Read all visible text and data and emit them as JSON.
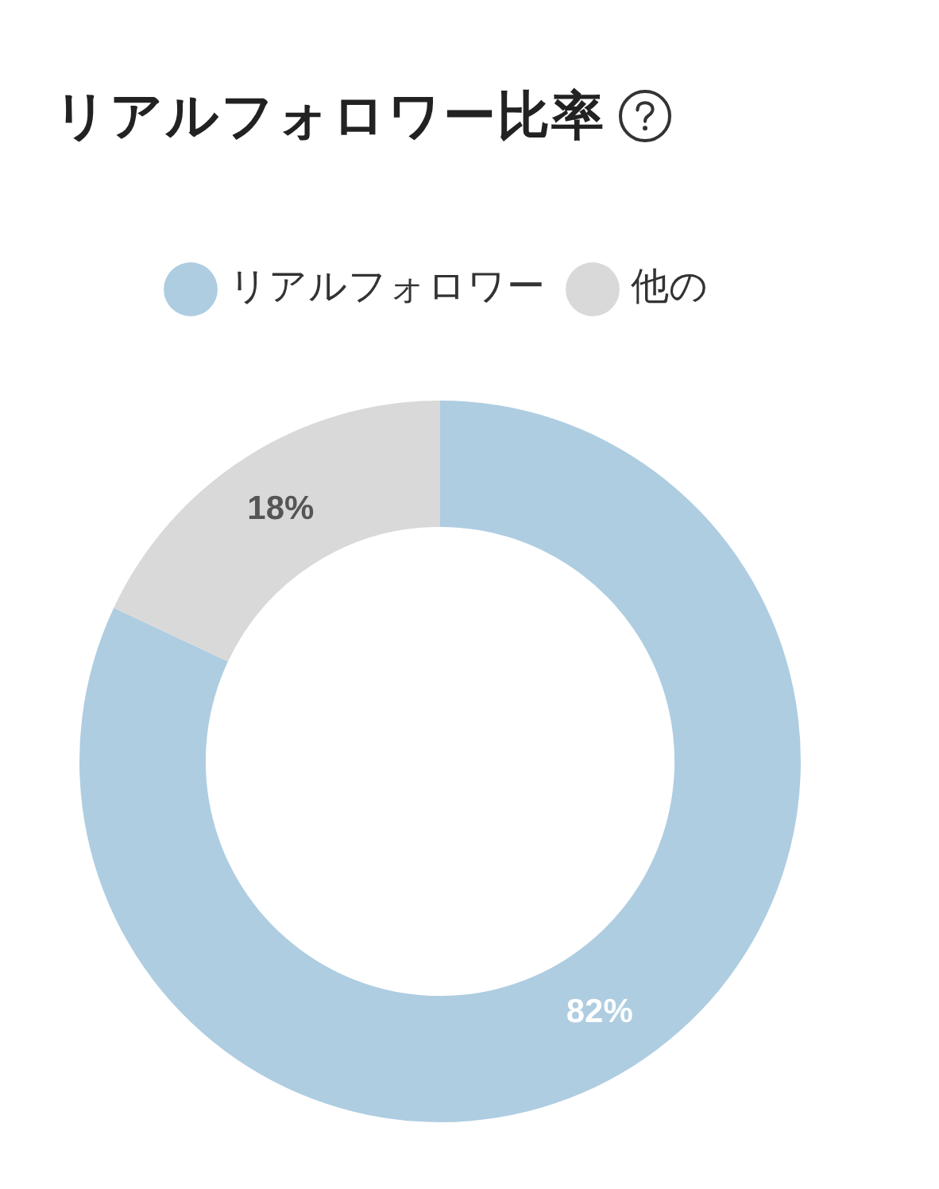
{
  "chart_data": {
    "type": "donut",
    "title": "リアルフォロワー比率",
    "categories": [
      "リアルフォロワー",
      "他の"
    ],
    "values": [
      82,
      18
    ],
    "colors": [
      "#aecde1",
      "#d9d9d9"
    ],
    "value_labels": [
      "82%",
      "18%"
    ],
    "legend": "top"
  }
}
